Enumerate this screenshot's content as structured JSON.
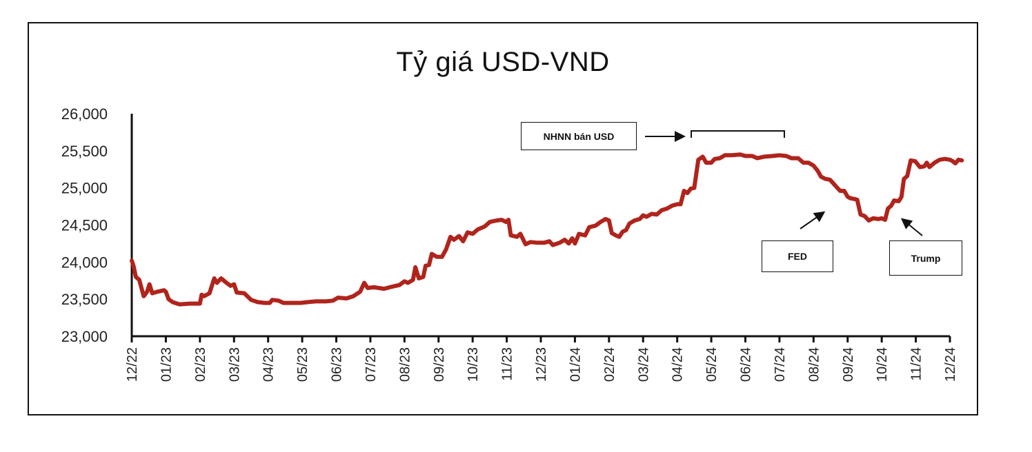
{
  "chart_data": {
    "type": "line",
    "title": "Tỷ giá USD-VND",
    "xlabel": "",
    "ylabel": "",
    "ylim": [
      23000,
      26000
    ],
    "yticks": [
      "26,000",
      "25,500",
      "25,000",
      "24,500",
      "24,000",
      "23,500",
      "23,000"
    ],
    "ytick_values": [
      26000,
      25500,
      25000,
      24500,
      24000,
      23500,
      23000
    ],
    "categories": [
      "12/22",
      "01/23",
      "02/23",
      "03/23",
      "04/23",
      "05/23",
      "06/23",
      "07/23",
      "08/23",
      "09/23",
      "10/23",
      "11/23",
      "12/23",
      "01/24",
      "02/24",
      "03/24",
      "04/24",
      "05/24",
      "06/24",
      "07/24",
      "08/24",
      "09/24",
      "10/24",
      "11/24",
      "12/24"
    ],
    "grid": false,
    "legend": "none",
    "line_color": "#B0241C",
    "series": [
      {
        "name": "USD-VND",
        "points": [
          [
            0.0,
            24020
          ],
          [
            0.05,
            23950
          ],
          [
            0.12,
            23800
          ],
          [
            0.22,
            23760
          ],
          [
            0.35,
            23540
          ],
          [
            0.45,
            23600
          ],
          [
            0.52,
            23700
          ],
          [
            0.6,
            23580
          ],
          [
            0.75,
            23600
          ],
          [
            0.95,
            23620
          ],
          [
            1.0,
            23600
          ],
          [
            1.08,
            23500
          ],
          [
            1.2,
            23460
          ],
          [
            1.4,
            23430
          ],
          [
            1.7,
            23440
          ],
          [
            2.0,
            23440
          ],
          [
            2.05,
            23560
          ],
          [
            2.12,
            23540
          ],
          [
            2.28,
            23580
          ],
          [
            2.35,
            23680
          ],
          [
            2.42,
            23780
          ],
          [
            2.5,
            23720
          ],
          [
            2.62,
            23780
          ],
          [
            2.78,
            23720
          ],
          [
            2.9,
            23680
          ],
          [
            3.0,
            23700
          ],
          [
            3.08,
            23590
          ],
          [
            3.3,
            23580
          ],
          [
            3.5,
            23490
          ],
          [
            3.7,
            23460
          ],
          [
            3.9,
            23450
          ],
          [
            4.05,
            23450
          ],
          [
            4.12,
            23490
          ],
          [
            4.3,
            23480
          ],
          [
            4.45,
            23450
          ],
          [
            4.7,
            23450
          ],
          [
            4.95,
            23450
          ],
          [
            5.15,
            23460
          ],
          [
            5.4,
            23470
          ],
          [
            5.7,
            23470
          ],
          [
            5.9,
            23480
          ],
          [
            6.05,
            23520
          ],
          [
            6.3,
            23510
          ],
          [
            6.5,
            23540
          ],
          [
            6.7,
            23600
          ],
          [
            6.82,
            23720
          ],
          [
            6.92,
            23650
          ],
          [
            7.1,
            23660
          ],
          [
            7.4,
            23640
          ],
          [
            7.65,
            23670
          ],
          [
            7.85,
            23690
          ],
          [
            8.0,
            23740
          ],
          [
            8.1,
            23720
          ],
          [
            8.25,
            23760
          ],
          [
            8.32,
            23930
          ],
          [
            8.42,
            23780
          ],
          [
            8.55,
            23800
          ],
          [
            8.62,
            23950
          ],
          [
            8.72,
            23960
          ],
          [
            8.8,
            24110
          ],
          [
            8.95,
            24070
          ],
          [
            9.1,
            24070
          ],
          [
            9.22,
            24170
          ],
          [
            9.35,
            24340
          ],
          [
            9.45,
            24300
          ],
          [
            9.6,
            24350
          ],
          [
            9.72,
            24280
          ],
          [
            9.85,
            24400
          ],
          [
            10.0,
            24380
          ],
          [
            10.15,
            24440
          ],
          [
            10.35,
            24480
          ],
          [
            10.5,
            24540
          ],
          [
            10.7,
            24560
          ],
          [
            10.85,
            24570
          ],
          [
            10.98,
            24540
          ],
          [
            11.05,
            24570
          ],
          [
            11.12,
            24360
          ],
          [
            11.3,
            24340
          ],
          [
            11.4,
            24380
          ],
          [
            11.55,
            24240
          ],
          [
            11.7,
            24270
          ],
          [
            11.9,
            24260
          ],
          [
            12.1,
            24260
          ],
          [
            12.25,
            24280
          ],
          [
            12.35,
            24230
          ],
          [
            12.55,
            24260
          ],
          [
            12.7,
            24300
          ],
          [
            12.82,
            24250
          ],
          [
            12.92,
            24320
          ],
          [
            13.0,
            24250
          ],
          [
            13.12,
            24380
          ],
          [
            13.3,
            24360
          ],
          [
            13.42,
            24470
          ],
          [
            13.6,
            24490
          ],
          [
            13.75,
            24540
          ],
          [
            13.9,
            24580
          ],
          [
            14.0,
            24560
          ],
          [
            14.08,
            24390
          ],
          [
            14.2,
            24360
          ],
          [
            14.3,
            24340
          ],
          [
            14.4,
            24410
          ],
          [
            14.5,
            24430
          ],
          [
            14.6,
            24520
          ],
          [
            14.75,
            24560
          ],
          [
            14.9,
            24580
          ],
          [
            15.0,
            24630
          ],
          [
            15.1,
            24610
          ],
          [
            15.25,
            24650
          ],
          [
            15.4,
            24640
          ],
          [
            15.55,
            24700
          ],
          [
            15.7,
            24720
          ],
          [
            15.85,
            24760
          ],
          [
            16.0,
            24780
          ],
          [
            16.1,
            24780
          ],
          [
            16.2,
            24960
          ],
          [
            16.3,
            24930
          ],
          [
            16.4,
            24990
          ],
          [
            16.5,
            25000
          ],
          [
            16.62,
            25380
          ],
          [
            16.75,
            25420
          ],
          [
            16.85,
            25340
          ],
          [
            17.0,
            25340
          ],
          [
            17.1,
            25390
          ],
          [
            17.25,
            25400
          ],
          [
            17.4,
            25440
          ],
          [
            17.6,
            25440
          ],
          [
            17.85,
            25450
          ],
          [
            18.0,
            25430
          ],
          [
            18.2,
            25430
          ],
          [
            18.35,
            25400
          ],
          [
            18.55,
            25420
          ],
          [
            18.8,
            25430
          ],
          [
            19.0,
            25440
          ],
          [
            19.2,
            25430
          ],
          [
            19.35,
            25400
          ],
          [
            19.55,
            25400
          ],
          [
            19.7,
            25340
          ],
          [
            19.85,
            25340
          ],
          [
            20.0,
            25300
          ],
          [
            20.12,
            25230
          ],
          [
            20.22,
            25150
          ],
          [
            20.35,
            25120
          ],
          [
            20.48,
            25110
          ],
          [
            20.58,
            25060
          ],
          [
            20.68,
            25010
          ],
          [
            20.78,
            24960
          ],
          [
            20.9,
            24960
          ],
          [
            21.0,
            24880
          ],
          [
            21.08,
            24860
          ],
          [
            21.2,
            24850
          ],
          [
            21.28,
            24840
          ],
          [
            21.38,
            24640
          ],
          [
            21.5,
            24620
          ],
          [
            21.62,
            24560
          ],
          [
            21.75,
            24590
          ],
          [
            21.9,
            24580
          ],
          [
            22.0,
            24590
          ],
          [
            22.1,
            24570
          ],
          [
            22.18,
            24720
          ],
          [
            22.28,
            24760
          ],
          [
            22.36,
            24830
          ],
          [
            22.5,
            24820
          ],
          [
            22.58,
            24880
          ],
          [
            22.65,
            25120
          ],
          [
            22.75,
            25160
          ],
          [
            22.85,
            25370
          ],
          [
            22.98,
            25360
          ],
          [
            23.12,
            25280
          ],
          [
            23.25,
            25290
          ],
          [
            23.32,
            25340
          ],
          [
            23.4,
            25280
          ],
          [
            23.55,
            25340
          ],
          [
            23.7,
            25380
          ],
          [
            23.85,
            25390
          ],
          [
            24.0,
            25380
          ],
          [
            24.08,
            25360
          ],
          [
            24.16,
            25330
          ],
          [
            24.25,
            25380
          ],
          [
            24.35,
            25370
          ]
        ]
      }
    ],
    "annotations": [
      {
        "label": "NHNN bán USD",
        "type": "bracket",
        "x_start": 16.5,
        "x_end": 19.2
      },
      {
        "label": "FED",
        "type": "arrow",
        "target_x": 21.3
      },
      {
        "label": "Trump",
        "type": "arrow",
        "target_x": 22.6
      }
    ]
  }
}
